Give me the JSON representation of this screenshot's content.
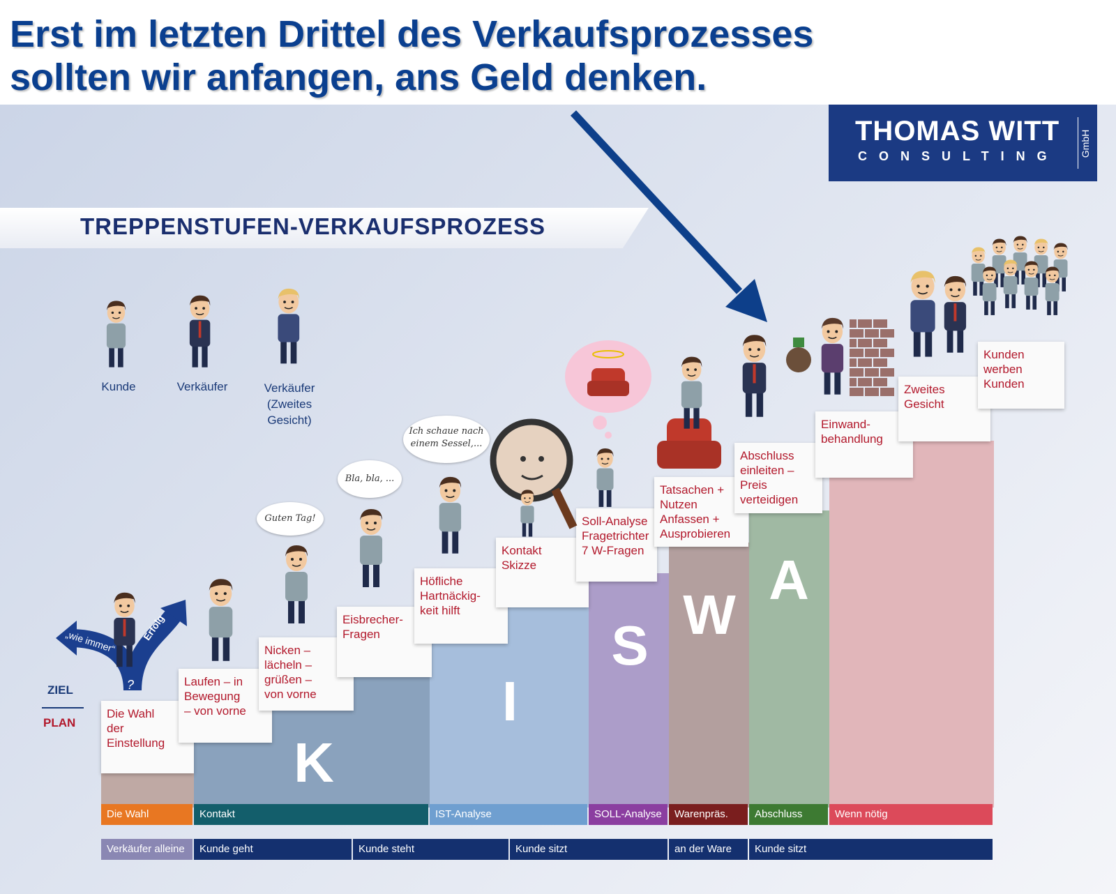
{
  "headline": {
    "line1": "Erst im letzten Drittel des Verkaufsprozesses",
    "line2": "sollten wir anfangen, ans Geld denken."
  },
  "logo": {
    "line1": "THOMAS WITT",
    "line2": "CONSULTING",
    "suffix": "GmbH"
  },
  "ribbon_title": "TREPPENSTUFEN-VERKAUFSPROZESS",
  "legend": {
    "kunde": "Kunde",
    "verkaeufer": "Verkäufer",
    "verkaeufer2_l1": "Verkäufer",
    "verkaeufer2_l2": "(Zweites",
    "verkaeufer2_l3": "Gesicht)"
  },
  "ziel": "ZIEL",
  "plan": "PLAN",
  "arrows": {
    "left": "„wie immer“",
    "right": "Erfolg",
    "question": "?"
  },
  "bubbles": {
    "b1": "Guten Tag!",
    "b2": "Bla, bla, ...",
    "b3_l1": "Ich schaue nach",
    "b3_l2": "einem Sessel,..."
  },
  "letters": {
    "k": "K",
    "i": "I",
    "s": "S",
    "w": "W",
    "a": "A"
  },
  "steps": [
    {
      "lines": [
        "Die Wahl",
        "der",
        "Einstellung"
      ]
    },
    {
      "lines": [
        "Laufen – in",
        "Bewegung",
        "– von vorne"
      ]
    },
    {
      "lines": [
        "Nicken –",
        "lächeln –",
        "grüßen –",
        "von vorne"
      ]
    },
    {
      "lines": [
        "Eisbrecher-",
        "Fragen"
      ]
    },
    {
      "lines": [
        "Höfliche",
        "Hartnäckig-",
        "keit hilft"
      ]
    },
    {
      "lines": [
        "Kontakt",
        "Skizze"
      ]
    },
    {
      "lines": [
        "Soll-Analyse",
        "Fragetrichter",
        "7 W-Fragen"
      ]
    },
    {
      "lines": [
        "Tatsachen +",
        "Nutzen",
        "Anfassen +",
        "Ausprobieren"
      ]
    },
    {
      "lines": [
        "Abschluss",
        "einleiten –",
        "Preis",
        "verteidigen"
      ]
    },
    {
      "lines": [
        "Einwand-",
        "behandlung"
      ]
    },
    {
      "lines": [
        "Zweites",
        "Gesicht"
      ]
    },
    {
      "lines": [
        "Kunden",
        "werben",
        "Kunden"
      ]
    }
  ],
  "phases": [
    {
      "label": "Die Wahl",
      "color": "#e87722"
    },
    {
      "label": "Kontakt",
      "color": "#135e6b"
    },
    {
      "label": "IST-Analyse",
      "color": "#6f9fd0"
    },
    {
      "label": "SOLL-Analyse",
      "color": "#8b3ea0"
    },
    {
      "label": "Warenpräs.",
      "color": "#7a1e1e"
    },
    {
      "label": "Abschluss",
      "color": "#3d7a32"
    },
    {
      "label": "Wenn nötig",
      "color": "#dc4a5a"
    }
  ],
  "positions": [
    {
      "label": "Verkäufer alleine",
      "color": "#8a87b3"
    },
    {
      "label": "Kunde geht",
      "color": "#14306f"
    },
    {
      "label": "Kunde steht",
      "color": "#14306f"
    },
    {
      "label": "Kunde sitzt",
      "color": "#14306f"
    },
    {
      "label": "an der Ware",
      "color": "#14306f"
    },
    {
      "label": "Kunde sitzt",
      "color": "#14306f"
    }
  ],
  "colors": {
    "headline": "#0a3f8f",
    "step_text": "#b2182b",
    "logo_bg": "#1b3a83",
    "title": "#1a2e6e"
  }
}
